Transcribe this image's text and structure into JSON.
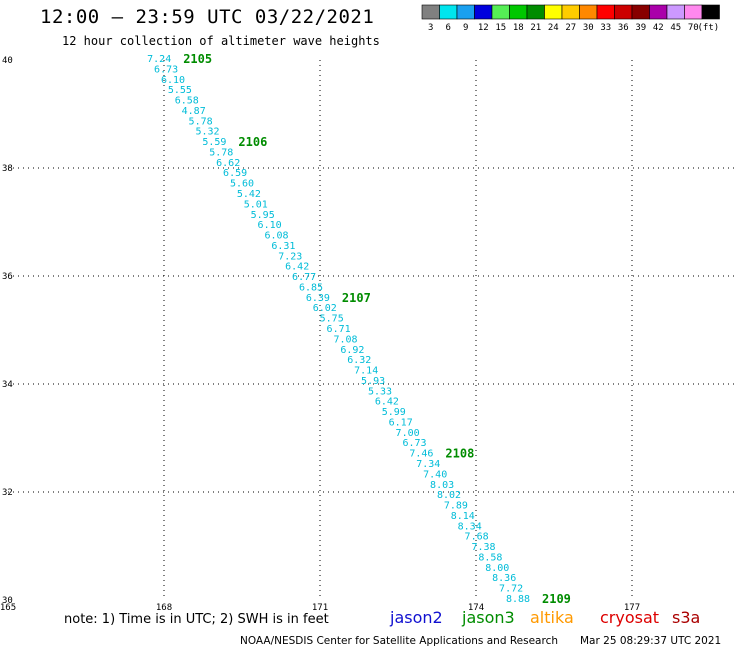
{
  "header": {
    "title": "12:00 – 23:59 UTC 03/22/2021",
    "subtitle": "12 hour collection of altimeter wave heights"
  },
  "legend": {
    "unit": "(ft)",
    "bins": [
      {
        "label": "3",
        "color": "#808080"
      },
      {
        "label": "6",
        "color": "#00e5ee"
      },
      {
        "label": "9",
        "color": "#1aa0f0"
      },
      {
        "label": "12",
        "color": "#0000dd"
      },
      {
        "label": "15",
        "color": "#55ee55"
      },
      {
        "label": "18",
        "color": "#00c800"
      },
      {
        "label": "21",
        "color": "#008c00"
      },
      {
        "label": "24",
        "color": "#ffff00"
      },
      {
        "label": "27",
        "color": "#ffcc00"
      },
      {
        "label": "30",
        "color": "#ff8800"
      },
      {
        "label": "33",
        "color": "#ff0000"
      },
      {
        "label": "36",
        "color": "#cc0000"
      },
      {
        "label": "39",
        "color": "#880000"
      },
      {
        "label": "42",
        "color": "#aa00aa"
      },
      {
        "label": "45",
        "color": "#cc99ff"
      },
      {
        "label": "70",
        "color": "#ff88ee"
      },
      {
        "label": "",
        "color": "#000000"
      }
    ]
  },
  "map": {
    "lon_range": [
      165,
      179
    ],
    "lat_range": [
      30,
      40
    ],
    "lon_ticks": [
      "165",
      "168",
      "171",
      "174",
      "177"
    ],
    "lat_ticks": [
      "40",
      "38",
      "36",
      "34",
      "32",
      "30"
    ],
    "grid": "dotted"
  },
  "track": {
    "color": "#00bcd8",
    "time_color": "#008c00",
    "swh_ft": [
      "7.24",
      "6.73",
      "6.10",
      "5.55",
      "6.58",
      "4.87",
      "5.78",
      "5.32",
      "5.59",
      "5.78",
      "6.62",
      "6.59",
      "5.60",
      "5.42",
      "5.01",
      "5.95",
      "6.10",
      "6.08",
      "6.31",
      "7.23",
      "6.42",
      "6.77",
      "6.85",
      "6.39",
      "6.02",
      "5.75",
      "6.71",
      "7.08",
      "6.92",
      "6.32",
      "7.14",
      "5.93",
      "5.33",
      "6.42",
      "5.99",
      "6.17",
      "7.00",
      "6.73",
      "7.46",
      "7.34",
      "7.40",
      "8.03",
      "8.02",
      "7.89",
      "8.14",
      "8.34",
      "7.68",
      "7.38",
      "8.58",
      "8.00",
      "8.36",
      "7.72",
      "8.88"
    ],
    "time_labels": [
      {
        "text": "2105",
        "index": 0
      },
      {
        "text": "2106",
        "index": 8
      },
      {
        "text": "2107",
        "index": 23
      },
      {
        "text": "2108",
        "index": 38
      },
      {
        "text": "2109",
        "index": 52
      }
    ]
  },
  "footer": {
    "note": "note: 1) Time is in UTC; 2) SWH is in feet",
    "missions": [
      {
        "name": "jason2",
        "color": "#1010d0"
      },
      {
        "name": "jason3",
        "color": "#008c00"
      },
      {
        "name": "altika",
        "color": "#ff9900"
      },
      {
        "name": "cryosat",
        "color": "#dd0000"
      },
      {
        "name": "s3a",
        "color": "#aa0000"
      }
    ],
    "credit": "NOAA/NESDIS Center for Satellite Applications and Research",
    "timestamp": "Mar 25 08:29:37 UTC 2021"
  }
}
